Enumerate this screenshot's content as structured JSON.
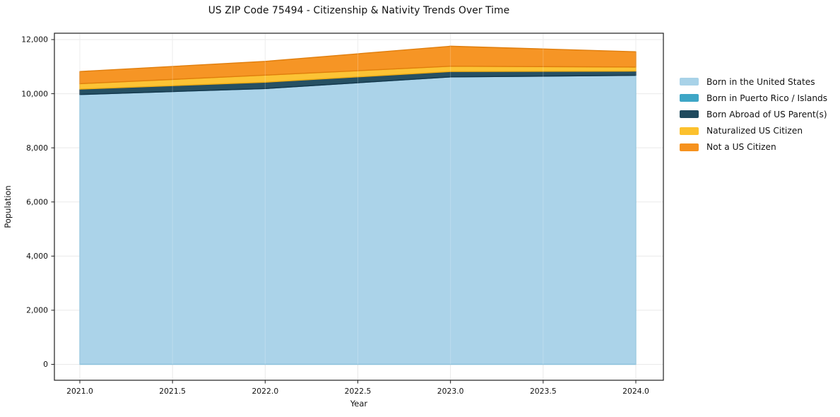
{
  "title": "US ZIP Code 75494 - Citizenship & Nativity Trends Over Time",
  "chart_data": {
    "type": "area",
    "stacked": true,
    "title": "US ZIP Code 75494 - Citizenship & Nativity Trends Over Time",
    "xlabel": "Year",
    "ylabel": "Population",
    "x": [
      2021,
      2022,
      2023,
      2024
    ],
    "xlim": [
      2020.85,
      2024.15
    ],
    "ylim": [
      0,
      12000
    ],
    "grid": true,
    "legend_position": "right-outside",
    "xticks": [
      {
        "value": 2021.0,
        "label": "2021.0"
      },
      {
        "value": 2021.5,
        "label": "2021.5"
      },
      {
        "value": 2022.0,
        "label": "2022.0"
      },
      {
        "value": 2022.5,
        "label": "2022.5"
      },
      {
        "value": 2023.0,
        "label": "2023.0"
      },
      {
        "value": 2023.5,
        "label": "2023.5"
      },
      {
        "value": 2024.0,
        "label": "2024.0"
      }
    ],
    "yticks": [
      {
        "value": 0,
        "label": "0"
      },
      {
        "value": 2000,
        "label": "2,000"
      },
      {
        "value": 4000,
        "label": "4,000"
      },
      {
        "value": 6000,
        "label": "6,000"
      },
      {
        "value": 8000,
        "label": "8,000"
      },
      {
        "value": 10000,
        "label": "10,000"
      },
      {
        "value": 12000,
        "label": "12,000"
      }
    ],
    "series": [
      {
        "name": "Born in the United States",
        "color": "#A8D2E8",
        "edge_color": "#8CC1DB",
        "values": [
          9970,
          10190,
          10620,
          10680
        ]
      },
      {
        "name": "Born in Puerto Rico / Islands",
        "color": "#3EA6C6",
        "edge_color": "#2F93B4",
        "values": [
          0,
          0,
          0,
          0
        ]
      },
      {
        "name": "Born Abroad of US Parent(s)",
        "color": "#1F4A5E",
        "edge_color": "#15364A",
        "values": [
          200,
          235,
          200,
          155
        ]
      },
      {
        "name": "Naturalized US Citizen",
        "color": "#FCC12E",
        "edge_color": "#EFAC14",
        "values": [
          200,
          260,
          195,
          150
        ]
      },
      {
        "name": "Not a US Citizen",
        "color": "#F6921E",
        "edge_color": "#E07E0D",
        "values": [
          450,
          510,
          740,
          565
        ]
      }
    ],
    "grid_color": "#e9e9e9",
    "spine_color": "#1f1f1f",
    "totals": [
      10820,
      11195,
      11755,
      11550
    ]
  }
}
